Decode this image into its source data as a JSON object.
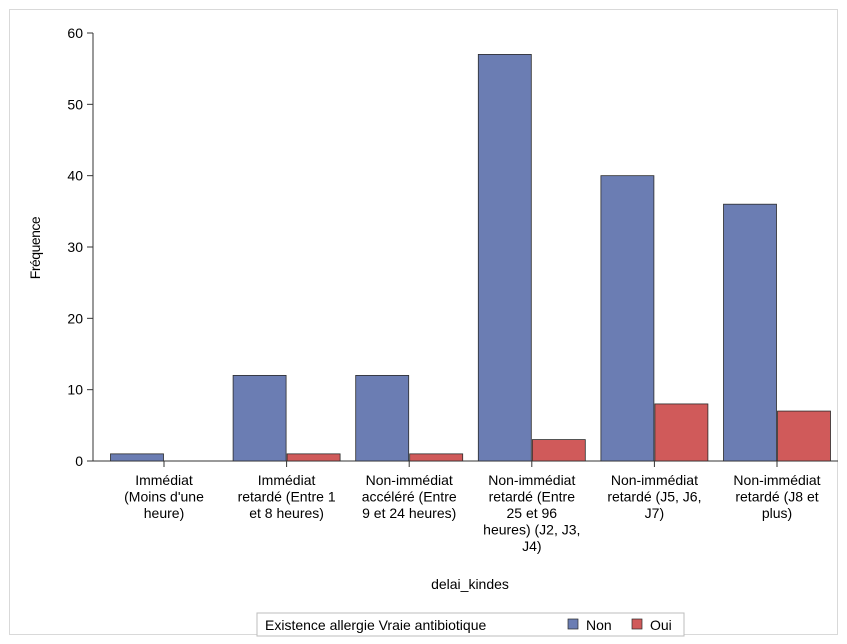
{
  "chart_data": {
    "type": "bar",
    "xlabel": "delai_kindes",
    "ylabel": "Fréquence",
    "ylim": [
      0,
      60
    ],
    "yticks": [
      0,
      10,
      20,
      30,
      40,
      50,
      60
    ],
    "grid": false,
    "legend_position": "bottom",
    "legend_title": "Existence allergie Vraie antibiotique",
    "categories": [
      [
        "Immédiat",
        "(Moins d'une",
        "heure)"
      ],
      [
        "Immédiat",
        "retardé (Entre 1",
        "et 8 heures)"
      ],
      [
        "Non-immédiat",
        "accéléré (Entre",
        "9 et 24 heures)"
      ],
      [
        "Non-immédiat",
        "retardé (Entre",
        "25 et 96",
        "heures) (J2, J3,",
        "J4)"
      ],
      [
        "Non-immédiat",
        "retardé (J5, J6,",
        "J7)"
      ],
      [
        "Non-immédiat",
        "retardé (J8 et",
        "plus)"
      ]
    ],
    "series": [
      {
        "name": "Non",
        "color": "#6b7db3",
        "values": [
          1,
          12,
          12,
          57,
          40,
          36
        ]
      },
      {
        "name": "Oui",
        "color": "#d05a5a",
        "values": [
          0,
          1,
          1,
          3,
          8,
          7
        ]
      }
    ]
  }
}
